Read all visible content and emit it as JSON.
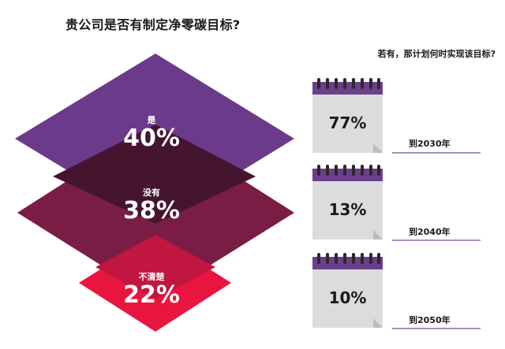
{
  "title": "贵公司是否有制定净零碳目标?",
  "subtitle": "若有，那计划何时实现该目标?",
  "colors": {
    "yes": "#6b3a8a",
    "no": "#7a1d45",
    "unsure": "#e8163f",
    "overlap_yes_no": "#451530",
    "overlap_no_unsure": "#c0163f",
    "calendar_header": "#6b3f8c",
    "calendar_body": "#dcdcdc"
  },
  "chart_data": [
    {
      "type": "pie",
      "title": "贵公司是否有制定净零碳目标?",
      "categories": [
        "是",
        "没有",
        "不清楚"
      ],
      "values": [
        40,
        38,
        22
      ],
      "unit": "%",
      "labels": [
        "40%",
        "38%",
        "22%"
      ]
    },
    {
      "type": "table",
      "title": "若有，那计划何时实现该目标?",
      "categories": [
        "到2030年",
        "到2040年",
        "到2050年"
      ],
      "values": [
        77,
        13,
        10
      ],
      "unit": "%",
      "labels": [
        "77%",
        "13%",
        "10%"
      ]
    }
  ]
}
